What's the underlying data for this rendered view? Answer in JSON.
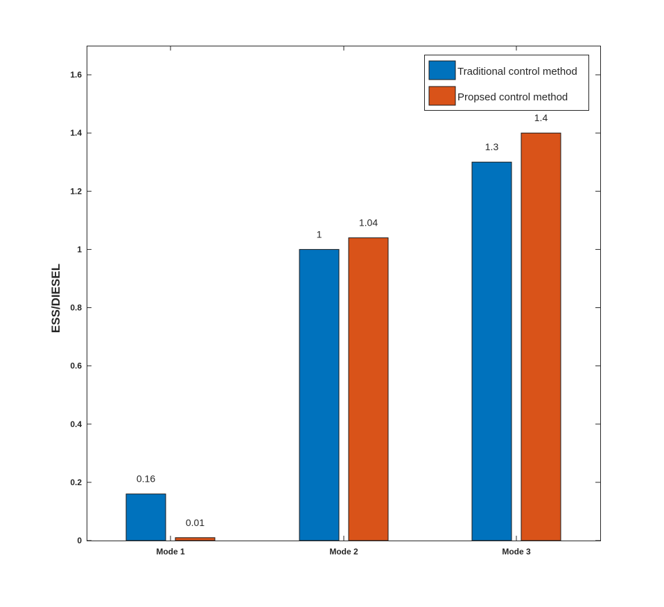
{
  "chart_data": {
    "type": "bar",
    "categories": [
      "Mode 1",
      "Mode 2",
      "Mode 3"
    ],
    "series": [
      {
        "name": "Traditional control method",
        "values": [
          0.16,
          1,
          1.3
        ],
        "labels": [
          "0.16",
          "1",
          "1.3"
        ],
        "color": "#0072BD"
      },
      {
        "name": "Propsed control method",
        "values": [
          0.01,
          1.04,
          1.4
        ],
        "labels": [
          "0.01",
          "1.04",
          "1.4"
        ],
        "color": "#D95319"
      }
    ],
    "title": "",
    "xlabel": "",
    "ylabel": "ESS/DIESEL",
    "ylim": [
      0,
      1.7
    ],
    "yticks": [
      "0",
      "0.2",
      "0.4",
      "0.6",
      "0.8",
      "1",
      "1.2",
      "1.4",
      "1.6"
    ],
    "ytick_values": [
      0,
      0.2,
      0.4,
      0.6,
      0.8,
      1,
      1.2,
      1.4,
      1.6
    ],
    "grid": false,
    "legend_position": "top-right"
  }
}
